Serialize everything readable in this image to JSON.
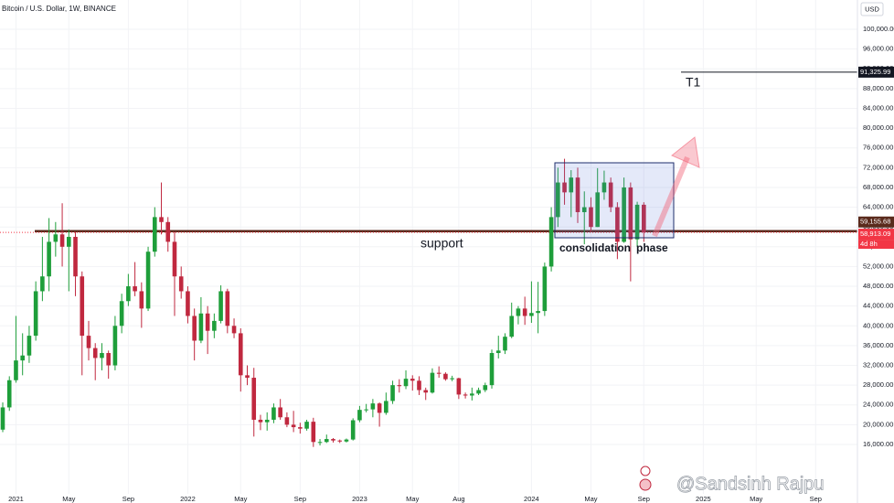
{
  "chart_data": {
    "type": "candlestick",
    "title": "Bitcoin / U.S. Dollar, 1W, BINANCE",
    "currency": "USD",
    "up_color": "#1e9e3a",
    "down_color": "#c0283f",
    "grid": true,
    "categories": [
      null,
      null,
      "2021",
      null,
      null,
      null,
      null,
      null,
      null,
      null,
      "May",
      null,
      null,
      null,
      null,
      null,
      null,
      null,
      null,
      "Sep",
      null,
      null,
      null,
      null,
      null,
      null,
      null,
      null,
      "2022",
      null,
      null,
      null,
      null,
      null,
      null,
      null,
      "May",
      null,
      null,
      null,
      null,
      null,
      null,
      null,
      null,
      "Sep",
      null,
      null,
      null,
      null,
      null,
      null,
      null,
      null,
      "2023",
      null,
      null,
      null,
      null,
      null,
      null,
      null,
      "May",
      null,
      null,
      null,
      null,
      null,
      null,
      "Aug",
      null,
      null,
      null,
      null,
      null,
      null,
      null,
      null,
      null,
      null,
      "2024",
      null,
      null,
      null,
      null,
      null,
      null,
      null,
      null,
      "May",
      null,
      null,
      null,
      null,
      null,
      null,
      null,
      "Sep",
      null,
      null,
      null,
      null,
      null,
      null,
      null,
      null,
      "2025",
      null,
      null,
      null,
      null,
      null,
      null,
      null,
      "May",
      null,
      null,
      null,
      null,
      null,
      null,
      null,
      null,
      "Sep",
      null,
      null,
      null,
      null,
      null,
      null
    ],
    "open": [
      19000,
      23500,
      29000,
      33000,
      34000,
      38000,
      47000,
      50000,
      57000,
      58500,
      56000,
      58000,
      50000,
      38000,
      35500,
      33500,
      34500,
      32000,
      40000,
      45000,
      48000,
      47000,
      43500,
      55000,
      62000,
      61000,
      57000,
      50000,
      47000,
      42000,
      37000,
      42500,
      39000,
      41000,
      47000,
      40000,
      38500,
      30000,
      29500,
      21000,
      20500,
      21000,
      23500,
      21500,
      20000,
      19500,
      19200,
      20600,
      16500,
      16500,
      17100,
      16800,
      16600,
      17000,
      20900,
      23000,
      23100,
      24300,
      22400,
      24800,
      28000,
      27800,
      29300,
      28900,
      27000,
      26500,
      30500,
      30300,
      29200,
      29400,
      26100,
      25900,
      26300,
      27000,
      28000,
      34500,
      35000,
      37800,
      42000,
      43500,
      42000,
      42600,
      43000,
      52000,
      62000,
      69000,
      67000,
      70000,
      63000,
      64000,
      60000,
      67000,
      69000,
      64000,
      57000,
      68000,
      57500,
      64500,
      null,
      null,
      null,
      null,
      null,
      null,
      null,
      null,
      null,
      null,
      null,
      null,
      null,
      null,
      null,
      null,
      null,
      null,
      null,
      null,
      null,
      null,
      null,
      null,
      null,
      null,
      null,
      null,
      null,
      null,
      null,
      null
    ],
    "high": [
      24500,
      29800,
      42000,
      38500,
      40000,
      49000,
      58000,
      61800,
      61000,
      64800,
      59500,
      59000,
      51000,
      41000,
      36500,
      36500,
      35000,
      42000,
      46500,
      50500,
      52900,
      48800,
      56000,
      64000,
      69000,
      62000,
      59000,
      52000,
      48000,
      43500,
      45800,
      44000,
      42500,
      48200,
      47500,
      41500,
      39500,
      32000,
      31500,
      22000,
      22500,
      24300,
      25200,
      22500,
      22800,
      20400,
      21000,
      21400,
      17100,
      18000,
      17300,
      17000,
      17200,
      21300,
      23800,
      24200,
      25200,
      24500,
      26500,
      28900,
      29200,
      31000,
      30000,
      29800,
      27500,
      31400,
      31800,
      30600,
      29900,
      29500,
      26500,
      27500,
      27500,
      28500,
      35200,
      38000,
      38500,
      44700,
      44000,
      45900,
      49000,
      48900,
      52800,
      64000,
      72000,
      73800,
      71500,
      72000,
      67200,
      66000,
      71900,
      71400,
      70000,
      65000,
      70000,
      69000,
      65100,
      65000,
      null,
      null,
      null,
      null,
      null,
      null,
      null,
      null,
      null,
      null,
      null,
      null,
      null,
      null,
      null,
      null,
      null,
      null,
      null,
      null,
      null,
      null,
      null,
      null,
      null,
      null,
      null,
      null,
      null,
      null,
      null,
      null
    ],
    "low": [
      18500,
      22800,
      28500,
      30000,
      32500,
      37000,
      45000,
      47000,
      54000,
      52000,
      47000,
      46000,
      30000,
      33000,
      29000,
      31000,
      29300,
      31000,
      38500,
      44000,
      46000,
      39600,
      43000,
      54000,
      58500,
      55000,
      42000,
      45500,
      40500,
      33000,
      36500,
      34300,
      37500,
      40500,
      38500,
      37500,
      26700,
      28000,
      17600,
      18900,
      18800,
      20300,
      21000,
      19500,
      18500,
      18200,
      18800,
      15500,
      15800,
      16300,
      16400,
      16300,
      16400,
      16800,
      20500,
      22500,
      21500,
      19600,
      22000,
      24200,
      26500,
      27200,
      26900,
      26000,
      25000,
      26300,
      29500,
      28900,
      28800,
      25200,
      25300,
      24900,
      26000,
      26600,
      27300,
      33400,
      34300,
      37500,
      40300,
      40200,
      40600,
      38500,
      42000,
      51000,
      60000,
      64500,
      62000,
      60800,
      56500,
      59000,
      60000,
      65500,
      63000,
      53500,
      56800,
      49000,
      56000,
      57000,
      null,
      null,
      null,
      null,
      null,
      null,
      null,
      null,
      null,
      null,
      null,
      null,
      null,
      null,
      null,
      null,
      null,
      null,
      null,
      null,
      null,
      null,
      null,
      null,
      null,
      null,
      null,
      null,
      null,
      null,
      null,
      null
    ],
    "close": [
      23500,
      29000,
      33000,
      34000,
      38000,
      47000,
      50000,
      57000,
      58500,
      56000,
      58000,
      50000,
      38000,
      35500,
      33500,
      34500,
      32000,
      40000,
      45000,
      48000,
      47000,
      43500,
      55000,
      62000,
      61000,
      57000,
      50000,
      47000,
      42000,
      37000,
      42500,
      39000,
      41000,
      47000,
      40000,
      38500,
      30000,
      29500,
      21000,
      20500,
      21000,
      23500,
      21500,
      20000,
      19500,
      19200,
      20600,
      16500,
      16500,
      17100,
      16800,
      16600,
      17000,
      20900,
      23000,
      23100,
      24300,
      22400,
      24800,
      28000,
      27800,
      29300,
      28900,
      27000,
      26500,
      30500,
      30300,
      29200,
      29400,
      26100,
      25900,
      26300,
      27000,
      28000,
      34500,
      35000,
      37800,
      42000,
      43500,
      42000,
      42600,
      43000,
      52000,
      62000,
      69000,
      67000,
      70000,
      63000,
      64000,
      60000,
      67000,
      69000,
      64000,
      57000,
      68000,
      57500,
      64500,
      58913.09,
      null,
      null,
      null,
      null,
      null,
      null,
      null,
      null,
      null,
      null,
      null,
      null,
      null,
      null,
      null,
      null,
      null,
      null,
      null,
      null,
      null,
      null,
      null,
      null,
      null,
      null,
      null,
      null,
      null,
      null,
      null,
      null
    ],
    "ylim": [
      12000,
      104000
    ],
    "yticks": [
      {
        "value": 100000,
        "label": "100,000.00"
      },
      {
        "value": 96000,
        "label": "96,000.00"
      },
      {
        "value": 92000,
        "label": "92,000.00"
      },
      {
        "value": 88000,
        "label": "88,000.00"
      },
      {
        "value": 84000,
        "label": "84,000.00"
      },
      {
        "value": 80000,
        "label": "80,000.00"
      },
      {
        "value": 76000,
        "label": "76,000.00"
      },
      {
        "value": 72000,
        "label": "72,000.00"
      },
      {
        "value": 68000,
        "label": "68,000.00"
      },
      {
        "value": 64000,
        "label": "64,000.00"
      },
      {
        "value": 60000,
        "label": "60,000.00"
      },
      {
        "value": 56000,
        "label": "56,000.00"
      },
      {
        "value": 52000,
        "label": "52,000.00"
      },
      {
        "value": 48000,
        "label": "48,000.00"
      },
      {
        "value": 44000,
        "label": "44,000.00"
      },
      {
        "value": 40000,
        "label": "40,000.00"
      },
      {
        "value": 36000,
        "label": "36,000.00"
      },
      {
        "value": 32000,
        "label": "32,000.00"
      },
      {
        "value": 28000,
        "label": "28,000.00"
      },
      {
        "value": 24000,
        "label": "24,000.00"
      },
      {
        "value": 20000,
        "label": "20,000.00"
      },
      {
        "value": 16000,
        "label": "16,000.00"
      }
    ],
    "price_lines": [
      {
        "value": 91325.99,
        "label": "91,325.99",
        "color": "#131722"
      },
      {
        "value": 59155.68,
        "label": "59,155.68",
        "color": "#5a2a1c"
      },
      {
        "value": 58913.09,
        "label": "58,913.09",
        "color": "#f23645"
      }
    ],
    "countdown": "4d 8h",
    "annotations": {
      "target": "T1",
      "support": "support",
      "range_1": "consolidation",
      "range_2": "phase"
    },
    "watermark": "@Sandsinh Rajpu"
  }
}
